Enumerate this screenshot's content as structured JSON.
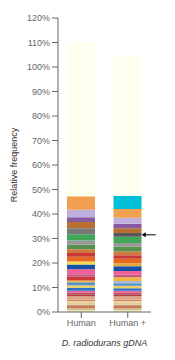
{
  "chart_data": {
    "type": "bar",
    "stacked": true,
    "categories": [
      "Human",
      "Human +"
    ],
    "y_label": "Relative frequency",
    "x_label": "D. radiodurans gDNA",
    "ylim": [
      0,
      120
    ],
    "yticks": [
      {
        "value": 0,
        "label": "0%"
      },
      {
        "value": 10,
        "label": "10%"
      },
      {
        "value": 20,
        "label": "20%"
      },
      {
        "value": 30,
        "label": "30%"
      },
      {
        "value": 40,
        "label": "40%"
      },
      {
        "value": 50,
        "label": "50%"
      },
      {
        "value": 60,
        "label": "60%"
      },
      {
        "value": 70,
        "label": "70%"
      },
      {
        "value": 80,
        "label": "80%"
      },
      {
        "value": 90,
        "label": "90%"
      },
      {
        "value": 100,
        "label": "100%"
      },
      {
        "value": 110,
        "label": "110%"
      },
      {
        "value": 120,
        "label": "120%"
      }
    ],
    "annotations": [
      {
        "category": "Human +",
        "y": 31.5
      }
    ],
    "segments": [
      [
        {
          "color": "#e8e8b0",
          "value": 0.8
        },
        {
          "color": "#d4b898",
          "value": 0.8
        },
        {
          "color": "#c87850",
          "value": 0.8
        },
        {
          "color": "#c8a080",
          "value": 0.6
        },
        {
          "color": "#e0c898",
          "value": 0.7
        },
        {
          "color": "#f0d8a8",
          "value": 0.7
        },
        {
          "color": "#c89060",
          "value": 0.7
        },
        {
          "color": "#e8a080",
          "value": 0.6
        },
        {
          "color": "#d8a888",
          "value": 0.7
        },
        {
          "color": "#b04040",
          "value": 0.8
        },
        {
          "color": "#c05070",
          "value": 0.7
        },
        {
          "color": "#e86090",
          "value": 0.8
        },
        {
          "color": "#3070c8",
          "value": 1.2
        },
        {
          "color": "#e8d060",
          "value": 1.0
        },
        {
          "color": "#5090c8",
          "value": 1.2
        },
        {
          "color": "#f0b840",
          "value": 0.8
        },
        {
          "color": "#d03838",
          "value": 1.5
        },
        {
          "color": "#c05880",
          "value": 1.0
        },
        {
          "color": "#f06098",
          "value": 2.0
        },
        {
          "color": "#1850a8",
          "value": 2.0
        },
        {
          "color": "#f0e050",
          "value": 1.2
        },
        {
          "color": "#e86820",
          "value": 2.0
        },
        {
          "color": "#c83838",
          "value": 1.5
        },
        {
          "color": "#d07840",
          "value": 1.5
        },
        {
          "color": "#589050",
          "value": 1.8
        },
        {
          "color": "#989898",
          "value": 1.8
        },
        {
          "color": "#40a858",
          "value": 2.5
        },
        {
          "color": "#787878",
          "value": 2.5
        },
        {
          "color": "#b87030",
          "value": 2.5
        },
        {
          "color": "#8858a0",
          "value": 2.0
        },
        {
          "color": "#c0b0e0",
          "value": 3.0
        },
        {
          "color": "#f0a050",
          "value": 5.5
        },
        {
          "color": "#fffff0",
          "value": 63.0
        }
      ],
      [
        {
          "color": "#e8e8b0",
          "value": 0.8
        },
        {
          "color": "#d4b898",
          "value": 0.8
        },
        {
          "color": "#c87850",
          "value": 0.8
        },
        {
          "color": "#c8a080",
          "value": 0.6
        },
        {
          "color": "#e0c898",
          "value": 0.7
        },
        {
          "color": "#f0d8a8",
          "value": 0.7
        },
        {
          "color": "#c89060",
          "value": 0.7
        },
        {
          "color": "#e8a080",
          "value": 0.6
        },
        {
          "color": "#d8a888",
          "value": 0.7
        },
        {
          "color": "#b04040",
          "value": 0.8
        },
        {
          "color": "#c05070",
          "value": 0.7
        },
        {
          "color": "#e86090",
          "value": 0.8
        },
        {
          "color": "#3070c8",
          "value": 1.0
        },
        {
          "color": "#e8d060",
          "value": 1.0
        },
        {
          "color": "#5090c8",
          "value": 1.0
        },
        {
          "color": "#a8b8d8",
          "value": 1.0
        },
        {
          "color": "#f0b840",
          "value": 1.5
        },
        {
          "color": "#c05880",
          "value": 1.0
        },
        {
          "color": "#f06098",
          "value": 1.5
        },
        {
          "color": "#1850a8",
          "value": 2.0
        },
        {
          "color": "#e0a840",
          "value": 1.2
        },
        {
          "color": "#e86820",
          "value": 1.8
        },
        {
          "color": "#c83838",
          "value": 1.5
        },
        {
          "color": "#d07840",
          "value": 1.5
        },
        {
          "color": "#589050",
          "value": 2.0
        },
        {
          "color": "#989898",
          "value": 1.5
        },
        {
          "color": "#40a858",
          "value": 2.5
        },
        {
          "color": "#585858",
          "value": 1.5
        },
        {
          "color": "#b87030",
          "value": 2.0
        },
        {
          "color": "#8858a0",
          "value": 1.8
        },
        {
          "color": "#c0b0e0",
          "value": 2.5
        },
        {
          "color": "#f0a050",
          "value": 3.5
        },
        {
          "color": "#00c0d8",
          "value": 5.5
        },
        {
          "color": "#fffff0",
          "value": 57.0
        }
      ]
    ]
  }
}
